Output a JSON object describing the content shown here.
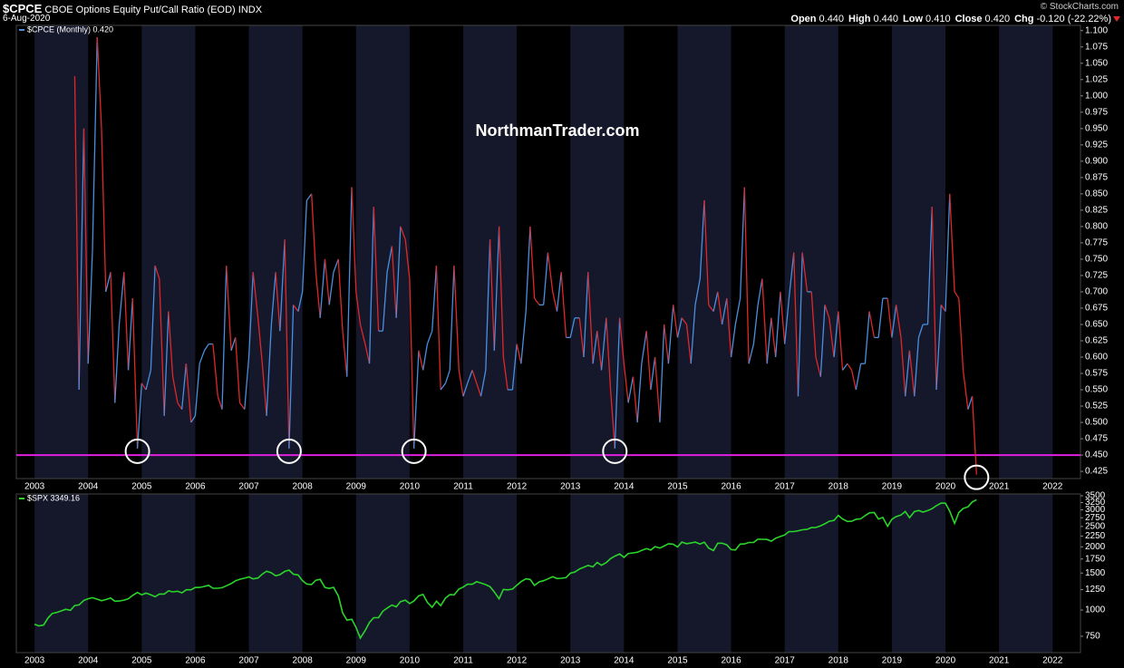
{
  "header": {
    "symbol": "$CPCE",
    "name": "CBOE Options Equity Put/Call Ratio (EOD)",
    "exchange": "INDX",
    "date": "6-Aug-2020",
    "quote": [
      {
        "label": "Open",
        "value": "0.440"
      },
      {
        "label": "High",
        "value": "0.440"
      },
      {
        "label": "Low",
        "value": "0.410"
      },
      {
        "label": "Close",
        "value": "0.420"
      },
      {
        "label": "Chg",
        "value": "-0.120 (-22.22%)"
      }
    ],
    "source": "© StockCharts.com"
  },
  "chart_data": [
    {
      "type": "line",
      "legend": "$CPCE (Monthly) 0.420",
      "watermark": "NorthmanTrader.com",
      "up_color": "#4a8fe0",
      "down_color": "#e02828",
      "xlim": [
        2002.66,
        2022.52
      ],
      "ylim": [
        0.414,
        1.108
      ],
      "xticks": [
        2003,
        2004,
        2005,
        2006,
        2007,
        2008,
        2009,
        2010,
        2011,
        2012,
        2013,
        2014,
        2015,
        2016,
        2017,
        2018,
        2019,
        2020,
        2021,
        2022
      ],
      "yticks": [
        {
          "value": 0.425,
          "label": "0.425"
        },
        {
          "value": 0.45,
          "label": "0.450"
        },
        {
          "value": 0.475,
          "label": "0.475"
        },
        {
          "value": 0.5,
          "label": "0.500"
        },
        {
          "value": 0.525,
          "label": "0.525"
        },
        {
          "value": 0.55,
          "label": "0.550"
        },
        {
          "value": 0.575,
          "label": "0.575"
        },
        {
          "value": 0.6,
          "label": "0.600"
        },
        {
          "value": 0.625,
          "label": "0.625"
        },
        {
          "value": 0.65,
          "label": "0.650"
        },
        {
          "value": 0.675,
          "label": "0.675"
        },
        {
          "value": 0.7,
          "label": "0.700"
        },
        {
          "value": 0.725,
          "label": "0.725"
        },
        {
          "value": 0.75,
          "label": "0.750"
        },
        {
          "value": 0.775,
          "label": "0.775"
        },
        {
          "value": 0.8,
          "label": "0.800"
        },
        {
          "value": 0.825,
          "label": "0.825"
        },
        {
          "value": 0.85,
          "label": "0.850"
        },
        {
          "value": 0.875,
          "label": "0.875"
        },
        {
          "value": 0.9,
          "label": "0.900"
        },
        {
          "value": 0.925,
          "label": "0.925"
        },
        {
          "value": 0.95,
          "label": "0.950"
        },
        {
          "value": 0.975,
          "label": "0.975"
        },
        {
          "value": 1.0,
          "label": "1.000"
        },
        {
          "value": 1.025,
          "label": "1.025"
        },
        {
          "value": 1.05,
          "label": "1.050"
        },
        {
          "value": 1.075,
          "label": "1.075"
        },
        {
          "value": 1.1,
          "label": "1.100"
        }
      ],
      "reference_line": {
        "value": 0.45,
        "color": "#e020e0"
      },
      "circles": [
        {
          "x": 2004.92,
          "y": 0.46
        },
        {
          "x": 2007.75,
          "y": 0.46
        },
        {
          "x": 2010.08,
          "y": 0.46
        },
        {
          "x": 2013.83,
          "y": 0.46
        },
        {
          "x": 2020.58,
          "y": 0.42
        }
      ],
      "x": [
        2003.75,
        2003.83,
        2003.92,
        2004.0,
        2004.08,
        2004.17,
        2004.25,
        2004.33,
        2004.42,
        2004.5,
        2004.58,
        2004.67,
        2004.75,
        2004.83,
        2004.92,
        2005.0,
        2005.08,
        2005.17,
        2005.25,
        2005.33,
        2005.42,
        2005.5,
        2005.58,
        2005.67,
        2005.75,
        2005.83,
        2005.92,
        2006.0,
        2006.08,
        2006.17,
        2006.25,
        2006.33,
        2006.42,
        2006.5,
        2006.58,
        2006.67,
        2006.75,
        2006.83,
        2006.92,
        2007.0,
        2007.08,
        2007.17,
        2007.25,
        2007.33,
        2007.42,
        2007.5,
        2007.58,
        2007.67,
        2007.75,
        2007.83,
        2007.92,
        2008.0,
        2008.08,
        2008.17,
        2008.25,
        2008.33,
        2008.42,
        2008.5,
        2008.58,
        2008.67,
        2008.75,
        2008.83,
        2008.92,
        2009.0,
        2009.08,
        2009.17,
        2009.25,
        2009.33,
        2009.42,
        2009.5,
        2009.58,
        2009.67,
        2009.75,
        2009.83,
        2009.92,
        2010.0,
        2010.08,
        2010.17,
        2010.25,
        2010.33,
        2010.42,
        2010.5,
        2010.58,
        2010.67,
        2010.75,
        2010.83,
        2010.92,
        2011.0,
        2011.08,
        2011.17,
        2011.25,
        2011.33,
        2011.42,
        2011.5,
        2011.58,
        2011.67,
        2011.75,
        2011.83,
        2011.92,
        2012.0,
        2012.08,
        2012.17,
        2012.25,
        2012.33,
        2012.42,
        2012.5,
        2012.58,
        2012.67,
        2012.75,
        2012.83,
        2012.92,
        2013.0,
        2013.08,
        2013.17,
        2013.25,
        2013.33,
        2013.42,
        2013.5,
        2013.58,
        2013.67,
        2013.75,
        2013.83,
        2013.92,
        2014.0,
        2014.08,
        2014.17,
        2014.25,
        2014.33,
        2014.42,
        2014.5,
        2014.58,
        2014.67,
        2014.75,
        2014.83,
        2014.92,
        2015.0,
        2015.08,
        2015.17,
        2015.25,
        2015.33,
        2015.42,
        2015.5,
        2015.58,
        2015.67,
        2015.75,
        2015.83,
        2015.92,
        2016.0,
        2016.08,
        2016.17,
        2016.25,
        2016.33,
        2016.42,
        2016.5,
        2016.58,
        2016.67,
        2016.75,
        2016.83,
        2016.92,
        2017.0,
        2017.08,
        2017.17,
        2017.25,
        2017.33,
        2017.42,
        2017.5,
        2017.58,
        2017.67,
        2017.75,
        2017.83,
        2017.92,
        2018.0,
        2018.08,
        2018.17,
        2018.25,
        2018.33,
        2018.42,
        2018.5,
        2018.58,
        2018.67,
        2018.75,
        2018.83,
        2018.92,
        2019.0,
        2019.08,
        2019.17,
        2019.25,
        2019.33,
        2019.42,
        2019.5,
        2019.58,
        2019.67,
        2019.75,
        2019.83,
        2019.92,
        2020.0,
        2020.08,
        2020.17,
        2020.25,
        2020.33,
        2020.42,
        2020.5,
        2020.58
      ],
      "values": [
        1.03,
        0.55,
        0.95,
        0.59,
        0.76,
        1.09,
        0.95,
        0.7,
        0.73,
        0.53,
        0.65,
        0.73,
        0.58,
        0.69,
        0.46,
        0.56,
        0.55,
        0.58,
        0.74,
        0.72,
        0.51,
        0.67,
        0.57,
        0.53,
        0.52,
        0.59,
        0.5,
        0.51,
        0.59,
        0.61,
        0.62,
        0.62,
        0.54,
        0.52,
        0.74,
        0.61,
        0.63,
        0.53,
        0.52,
        0.6,
        0.73,
        0.66,
        0.59,
        0.51,
        0.65,
        0.73,
        0.64,
        0.78,
        0.46,
        0.68,
        0.67,
        0.7,
        0.84,
        0.85,
        0.73,
        0.66,
        0.75,
        0.68,
        0.73,
        0.75,
        0.64,
        0.57,
        0.86,
        0.7,
        0.65,
        0.62,
        0.59,
        0.83,
        0.64,
        0.64,
        0.73,
        0.77,
        0.66,
        0.8,
        0.78,
        0.72,
        0.46,
        0.61,
        0.58,
        0.62,
        0.64,
        0.74,
        0.55,
        0.56,
        0.58,
        0.74,
        0.58,
        0.54,
        0.56,
        0.58,
        0.56,
        0.54,
        0.58,
        0.78,
        0.61,
        0.8,
        0.6,
        0.55,
        0.55,
        0.62,
        0.59,
        0.67,
        0.8,
        0.69,
        0.68,
        0.68,
        0.76,
        0.7,
        0.67,
        0.73,
        0.63,
        0.63,
        0.66,
        0.66,
        0.6,
        0.73,
        0.59,
        0.64,
        0.58,
        0.66,
        0.55,
        0.46,
        0.66,
        0.59,
        0.53,
        0.57,
        0.5,
        0.59,
        0.64,
        0.55,
        0.6,
        0.5,
        0.65,
        0.59,
        0.68,
        0.63,
        0.66,
        0.65,
        0.59,
        0.68,
        0.72,
        0.84,
        0.68,
        0.67,
        0.7,
        0.65,
        0.69,
        0.6,
        0.65,
        0.69,
        0.86,
        0.59,
        0.62,
        0.68,
        0.72,
        0.59,
        0.66,
        0.6,
        0.7,
        0.62,
        0.69,
        0.76,
        0.54,
        0.76,
        0.7,
        0.7,
        0.6,
        0.57,
        0.68,
        0.66,
        0.6,
        0.67,
        0.58,
        0.59,
        0.58,
        0.55,
        0.59,
        0.59,
        0.67,
        0.63,
        0.63,
        0.69,
        0.69,
        0.63,
        0.68,
        0.63,
        0.54,
        0.61,
        0.54,
        0.63,
        0.65,
        0.65,
        0.83,
        0.55,
        0.68,
        0.67,
        0.85,
        0.7,
        0.69,
        0.58,
        0.52,
        0.54,
        0.42
      ]
    },
    {
      "type": "line",
      "legend": "$SPX 3349.16",
      "color": "#2ad52a",
      "log_scale": true,
      "xlim": [
        2002.66,
        2022.52
      ],
      "ylim": [
        627,
        3570
      ],
      "xticks": [
        2003,
        2004,
        2005,
        2006,
        2007,
        2008,
        2009,
        2010,
        2011,
        2012,
        2013,
        2014,
        2015,
        2016,
        2017,
        2018,
        2019,
        2020,
        2021,
        2022
      ],
      "yticks": [
        750,
        1000,
        1250,
        1500,
        1750,
        2000,
        2250,
        2500,
        2750,
        3000,
        3250,
        3500
      ],
      "x": [
        2003.0,
        2003.08,
        2003.17,
        2003.25,
        2003.33,
        2003.42,
        2003.5,
        2003.58,
        2003.67,
        2003.75,
        2003.83,
        2003.92,
        2004.0,
        2004.08,
        2004.17,
        2004.25,
        2004.33,
        2004.42,
        2004.5,
        2004.58,
        2004.67,
        2004.75,
        2004.83,
        2004.92,
        2005.0,
        2005.08,
        2005.17,
        2005.25,
        2005.33,
        2005.42,
        2005.5,
        2005.58,
        2005.67,
        2005.75,
        2005.83,
        2005.92,
        2006.0,
        2006.08,
        2006.17,
        2006.25,
        2006.33,
        2006.42,
        2006.5,
        2006.58,
        2006.67,
        2006.75,
        2006.83,
        2006.92,
        2007.0,
        2007.08,
        2007.17,
        2007.25,
        2007.33,
        2007.42,
        2007.5,
        2007.58,
        2007.67,
        2007.75,
        2007.83,
        2007.92,
        2008.0,
        2008.08,
        2008.17,
        2008.25,
        2008.33,
        2008.42,
        2008.5,
        2008.58,
        2008.67,
        2008.75,
        2008.83,
        2008.92,
        2009.0,
        2009.08,
        2009.17,
        2009.25,
        2009.33,
        2009.42,
        2009.5,
        2009.58,
        2009.67,
        2009.75,
        2009.83,
        2009.92,
        2010.0,
        2010.08,
        2010.17,
        2010.25,
        2010.33,
        2010.42,
        2010.5,
        2010.58,
        2010.67,
        2010.75,
        2010.83,
        2010.92,
        2011.0,
        2011.08,
        2011.17,
        2011.25,
        2011.33,
        2011.42,
        2011.5,
        2011.58,
        2011.67,
        2011.75,
        2011.83,
        2011.92,
        2012.0,
        2012.08,
        2012.17,
        2012.25,
        2012.33,
        2012.42,
        2012.5,
        2012.58,
        2012.67,
        2012.75,
        2012.83,
        2012.92,
        2013.0,
        2013.08,
        2013.17,
        2013.25,
        2013.33,
        2013.42,
        2013.5,
        2013.58,
        2013.67,
        2013.75,
        2013.83,
        2013.92,
        2014.0,
        2014.08,
        2014.17,
        2014.25,
        2014.33,
        2014.42,
        2014.5,
        2014.58,
        2014.67,
        2014.75,
        2014.83,
        2014.92,
        2015.0,
        2015.08,
        2015.17,
        2015.25,
        2015.33,
        2015.42,
        2015.5,
        2015.58,
        2015.67,
        2015.75,
        2015.83,
        2015.92,
        2016.0,
        2016.08,
        2016.17,
        2016.25,
        2016.33,
        2016.42,
        2016.5,
        2016.58,
        2016.67,
        2016.75,
        2016.83,
        2016.92,
        2017.0,
        2017.08,
        2017.17,
        2017.25,
        2017.33,
        2017.42,
        2017.5,
        2017.58,
        2017.67,
        2017.75,
        2017.83,
        2017.92,
        2018.0,
        2018.08,
        2018.17,
        2018.25,
        2018.33,
        2018.42,
        2018.5,
        2018.58,
        2018.67,
        2018.75,
        2018.83,
        2018.92,
        2019.0,
        2019.08,
        2019.17,
        2019.25,
        2019.33,
        2019.42,
        2019.5,
        2019.58,
        2019.67,
        2019.75,
        2019.83,
        2019.92,
        2020.0,
        2020.08,
        2020.17,
        2020.25,
        2020.33,
        2020.42,
        2020.5,
        2020.58
      ],
      "values": [
        855,
        841,
        848,
        916,
        963,
        975,
        990,
        1008,
        996,
        1050,
        1058,
        1112,
        1131,
        1145,
        1126,
        1107,
        1121,
        1141,
        1102,
        1104,
        1115,
        1130,
        1174,
        1212,
        1181,
        1204,
        1181,
        1157,
        1192,
        1191,
        1234,
        1220,
        1229,
        1207,
        1249,
        1248,
        1280,
        1281,
        1295,
        1311,
        1270,
        1270,
        1277,
        1304,
        1336,
        1378,
        1401,
        1418,
        1438,
        1407,
        1421,
        1482,
        1531,
        1503,
        1455,
        1474,
        1527,
        1549,
        1481,
        1468,
        1379,
        1331,
        1323,
        1386,
        1400,
        1280,
        1267,
        1283,
        1166,
        969,
        896,
        903,
        826,
        735,
        798,
        873,
        919,
        919,
        987,
        1021,
        1057,
        1036,
        1096,
        1115,
        1074,
        1104,
        1169,
        1187,
        1089,
        1031,
        1102,
        1049,
        1141,
        1183,
        1181,
        1258,
        1286,
        1327,
        1326,
        1364,
        1345,
        1321,
        1292,
        1219,
        1131,
        1253,
        1247,
        1258,
        1312,
        1366,
        1408,
        1398,
        1310,
        1362,
        1379,
        1407,
        1441,
        1412,
        1416,
        1426,
        1498,
        1515,
        1569,
        1598,
        1631,
        1606,
        1686,
        1633,
        1682,
        1757,
        1806,
        1848,
        1783,
        1859,
        1872,
        1884,
        1924,
        1960,
        1931,
        2003,
        1972,
        2018,
        2068,
        2059,
        1995,
        2105,
        2068,
        2086,
        2107,
        2063,
        2104,
        1972,
        1920,
        2079,
        2080,
        2044,
        1940,
        1932,
        2060,
        2065,
        2097,
        2099,
        2174,
        2171,
        2168,
        2126,
        2199,
        2239,
        2279,
        2364,
        2363,
        2384,
        2412,
        2423,
        2470,
        2472,
        2519,
        2575,
        2648,
        2674,
        2824,
        2714,
        2641,
        2648,
        2705,
        2718,
        2816,
        2902,
        2914,
        2712,
        2760,
        2507,
        2704,
        2784,
        2834,
        2946,
        2752,
        2942,
        2980,
        2926,
        2977,
        3038,
        3141,
        3231,
        3226,
        2954,
        2585,
        2912,
        3044,
        3100,
        3271,
        3349
      ]
    }
  ]
}
